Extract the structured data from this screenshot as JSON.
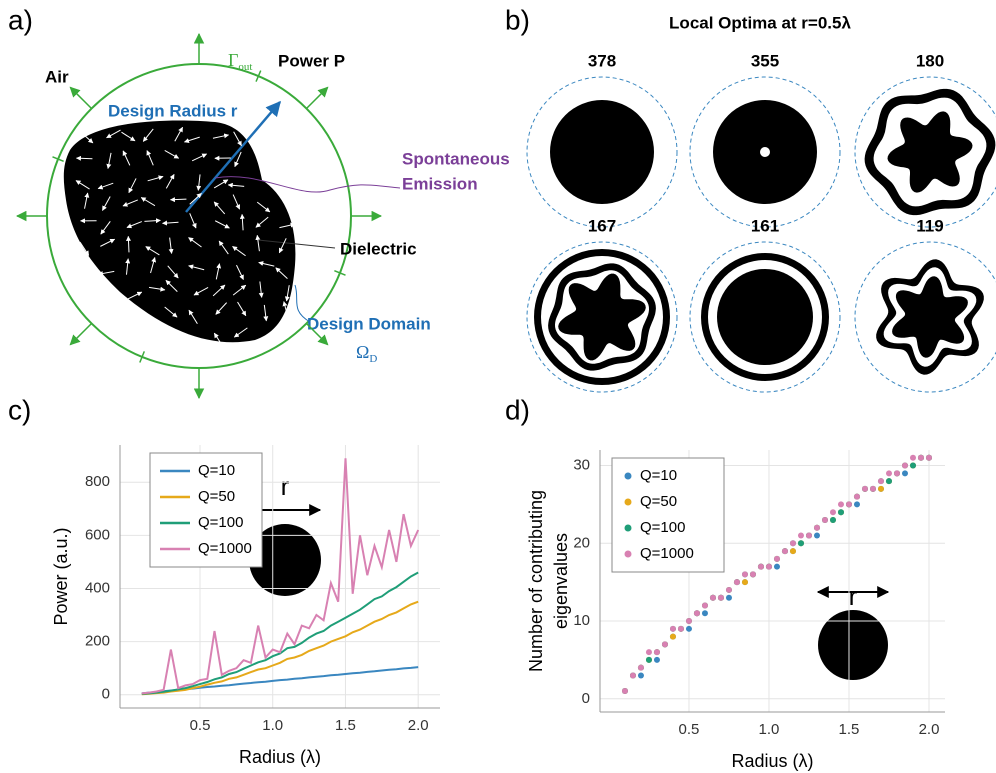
{
  "panels": [
    "a)",
    "b)",
    "c)",
    "d)"
  ],
  "diagram": {
    "air": "Air",
    "boundary_symbol": "Γ",
    "boundary_sub": "out",
    "power": "Power P",
    "radius": "Design Radius r",
    "emission": [
      "Spontaneous",
      "Emission"
    ],
    "dielectric": "Dielectric",
    "domain": "Design Domain",
    "domain_symbol": "Ω",
    "domain_sub": "D"
  },
  "optima": {
    "title": "Local Optima at r=0.5λ",
    "labels": [
      "378",
      "355",
      "180",
      "167",
      "161",
      "119"
    ]
  },
  "chart_data": [
    {
      "type": "line",
      "xlabel": "Radius (λ)",
      "ylabel": [
        "Power (a.u.)"
      ],
      "annotation": "r",
      "x": [
        0.1,
        0.15,
        0.2,
        0.25,
        0.3,
        0.35,
        0.4,
        0.45,
        0.5,
        0.55,
        0.6,
        0.65,
        0.7,
        0.75,
        0.8,
        0.85,
        0.9,
        0.95,
        1.0,
        1.05,
        1.1,
        1.15,
        1.2,
        1.25,
        1.3,
        1.35,
        1.4,
        1.45,
        1.5,
        1.55,
        1.6,
        1.65,
        1.7,
        1.75,
        1.8,
        1.85,
        1.9,
        1.95,
        2.0
      ],
      "xlim": [
        -0.05,
        2.15
      ],
      "xticks": [
        0.5,
        {
          "value": 1,
          "label": "1.0"
        },
        1.5,
        {
          "value": 2,
          "label": "2.0"
        }
      ],
      "ylim": [
        -50,
        940
      ],
      "yticks": [
        0,
        200,
        400,
        600,
        800
      ],
      "grid": true,
      "legend": "upper left",
      "series": [
        {
          "name": "Q=10",
          "color": "#3a87c0",
          "values": [
            5,
            8,
            10,
            13,
            16,
            18,
            21,
            23,
            26,
            29,
            31,
            34,
            36,
            39,
            42,
            44,
            47,
            49,
            52,
            55,
            57,
            60,
            62,
            65,
            68,
            70,
            73,
            75,
            78,
            81,
            83,
            86,
            88,
            91,
            94,
            96,
            99,
            101,
            104
          ]
        },
        {
          "name": "Q=50",
          "color": "#e6a91a",
          "values": [
            2,
            4,
            6,
            8,
            12,
            15,
            18,
            25,
            30,
            38,
            45,
            50,
            60,
            65,
            75,
            85,
            95,
            100,
            110,
            120,
            135,
            140,
            150,
            165,
            175,
            185,
            200,
            210,
            220,
            235,
            245,
            260,
            275,
            285,
            300,
            310,
            325,
            340,
            350
          ]
        },
        {
          "name": "Q=100",
          "color": "#1f9e78",
          "values": [
            3,
            5,
            8,
            11,
            15,
            20,
            25,
            32,
            40,
            48,
            58,
            65,
            78,
            85,
            98,
            110,
            122,
            130,
            145,
            155,
            175,
            180,
            195,
            215,
            230,
            240,
            260,
            275,
            290,
            305,
            320,
            340,
            360,
            370,
            390,
            405,
            425,
            445,
            460
          ]
        },
        {
          "name": "Q=1000",
          "color": "#d881b2",
          "values": [
            5,
            8,
            12,
            18,
            170,
            25,
            35,
            40,
            55,
            60,
            240,
            75,
            90,
            100,
            130,
            120,
            260,
            140,
            170,
            160,
            230,
            190,
            260,
            250,
            300,
            280,
            420,
            350,
            890,
            380,
            600,
            450,
            560,
            480,
            620,
            500,
            680,
            560,
            620
          ]
        }
      ]
    },
    {
      "type": "scatter",
      "xlabel": "Radius (λ)",
      "ylabel": [
        "Number of contributing",
        "eigenvalues"
      ],
      "annotation": "r",
      "x": [
        0.1,
        0.15,
        0.2,
        0.25,
        0.3,
        0.35,
        0.4,
        0.45,
        0.5,
        0.55,
        0.6,
        0.65,
        0.7,
        0.75,
        0.8,
        0.85,
        0.9,
        0.95,
        1.0,
        1.05,
        1.1,
        1.15,
        1.2,
        1.25,
        1.3,
        1.35,
        1.4,
        1.45,
        1.5,
        1.55,
        1.6,
        1.65,
        1.7,
        1.75,
        1.8,
        1.85,
        1.9,
        1.95,
        2.0
      ],
      "xlim": [
        -0.056,
        2.1
      ],
      "xticks": [
        0.5,
        {
          "value": 1,
          "label": "1.0"
        },
        1.5,
        {
          "value": 2,
          "label": "2.0"
        }
      ],
      "ylim": [
        -1.7,
        32
      ],
      "yticks": [
        0,
        10,
        20,
        30
      ],
      "grid": true,
      "legend": "upper left",
      "series": [
        {
          "name": "Q=10",
          "color": "#3a87c0",
          "values": [
            1,
            3,
            3,
            5,
            5,
            7,
            8,
            9,
            9,
            11,
            11,
            13,
            13,
            13,
            15,
            15,
            16,
            17,
            17,
            17,
            19,
            19,
            20,
            21,
            21,
            23,
            23,
            24,
            25,
            25,
            27,
            27,
            27,
            28,
            29,
            29,
            30,
            31,
            31
          ]
        },
        {
          "name": "Q=50",
          "color": "#e6a91a",
          "values": [
            1,
            3,
            4,
            5,
            6,
            7,
            8,
            9,
            10,
            11,
            12,
            13,
            13,
            14,
            15,
            15,
            16,
            17,
            17,
            18,
            19,
            19,
            20,
            21,
            22,
            23,
            23,
            24,
            25,
            26,
            27,
            27,
            27,
            28,
            29,
            30,
            30,
            31,
            31
          ]
        },
        {
          "name": "Q=100",
          "color": "#1f9e78",
          "values": [
            1,
            3,
            4,
            5,
            6,
            7,
            9,
            9,
            10,
            11,
            12,
            13,
            13,
            14,
            15,
            16,
            16,
            17,
            17,
            18,
            19,
            20,
            20,
            21,
            22,
            23,
            23,
            24,
            25,
            26,
            27,
            27,
            28,
            28,
            29,
            30,
            30,
            31,
            31
          ]
        },
        {
          "name": "Q=1000",
          "color": "#d881b2",
          "values": [
            1,
            3,
            4,
            6,
            6,
            7,
            9,
            9,
            10,
            11,
            12,
            13,
            13,
            14,
            15,
            16,
            16,
            17,
            17,
            18,
            19,
            20,
            21,
            21,
            22,
            23,
            24,
            25,
            25,
            26,
            27,
            27,
            28,
            29,
            29,
            30,
            31,
            31,
            31
          ]
        }
      ]
    }
  ]
}
